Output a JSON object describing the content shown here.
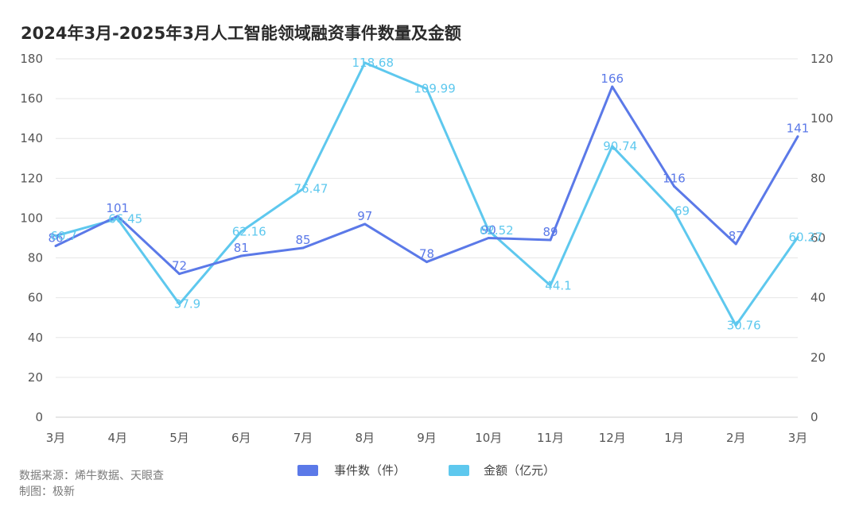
{
  "title": "2024年3月-2025年3月人工智能领域融资事件数量及金额",
  "footer": {
    "source": "数据来源：烯牛数据、天眼查",
    "author": "制图：极新"
  },
  "colors": {
    "count_series": "#5b79e8",
    "amount_series": "#5ec8ee",
    "grid": "#e6e6e6"
  },
  "chart_data": {
    "type": "line",
    "title": "2024年3月-2025年3月人工智能领域融资事件数量及金额",
    "categories": [
      "3月",
      "4月",
      "5月",
      "6月",
      "7月",
      "8月",
      "9月",
      "10月",
      "11月",
      "12月",
      "1月",
      "2月",
      "3月"
    ],
    "left_axis": {
      "ylim": [
        0,
        180
      ],
      "ticks": [
        0,
        20,
        40,
        60,
        80,
        100,
        120,
        140,
        160,
        180
      ]
    },
    "right_axis": {
      "ylim": [
        0,
        120
      ],
      "ticks": [
        0,
        20,
        40,
        60,
        80,
        100,
        120
      ]
    },
    "grid": true,
    "legend_position": "bottom",
    "series": [
      {
        "name": "事件数（件）",
        "axis": "left",
        "values": [
          86,
          101,
          72,
          81,
          85,
          97,
          78,
          90,
          89,
          166,
          116,
          87,
          141
        ],
        "labels": [
          "86",
          "101",
          "72",
          "81",
          "85",
          "97",
          "78",
          "90",
          "89",
          "166",
          "116",
          "87",
          "141"
        ]
      },
      {
        "name": "金额（亿元）",
        "axis": "right",
        "values": [
          60.7,
          66.45,
          37.9,
          62.16,
          76.47,
          118.68,
          109.99,
          62.52,
          44.1,
          90.74,
          69,
          30.76,
          60.27
        ],
        "labels": [
          "60.7",
          "66.45",
          "37.9",
          "62.16",
          "76.47",
          "118.68",
          "109.99",
          "62.52",
          "44.1",
          "90.74",
          "69",
          "30.76",
          "60.27"
        ]
      }
    ]
  }
}
